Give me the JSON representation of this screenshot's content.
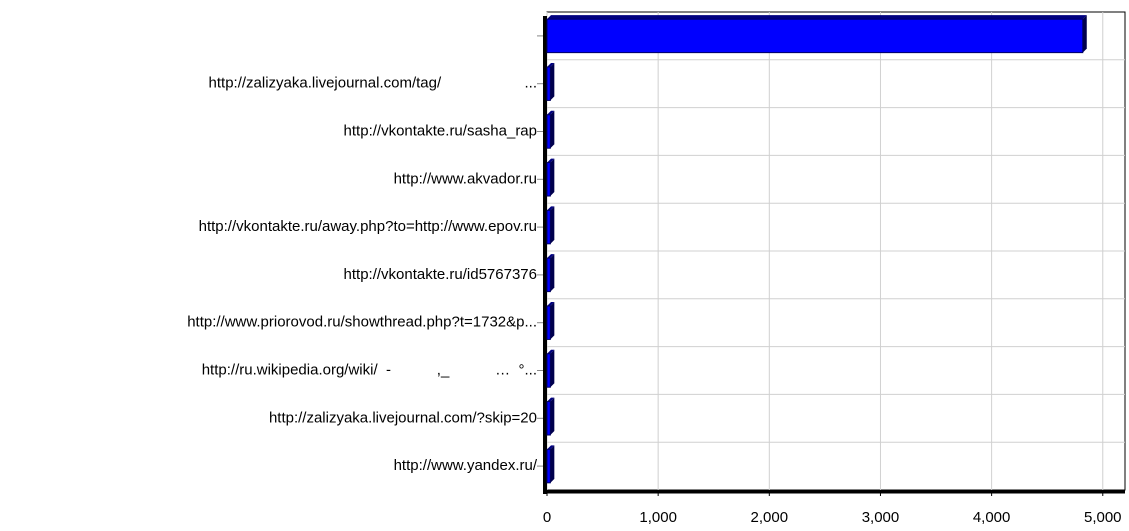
{
  "chart_data": {
    "type": "bar",
    "orientation": "horizontal",
    "categories": [
      null,
      "http://zalizyaka.livejournal.com/tag/                    ...",
      "http://vkontakte.ru/sasha_rap",
      "http://www.akvador.ru",
      "http://vkontakte.ru/away.php?to=http://www.epov.ru",
      "http://vkontakte.ru/id5767376",
      "http://www.priorovod.ru/showthread.php?t=1732&p...",
      "http://ru.wikipedia.org/wiki/  -           ,_           …  °...",
      "http://zalizyaka.livejournal.com/?skip=20",
      "http://www.yandex.ru/"
    ],
    "values": [
      4820,
      30,
      30,
      30,
      30,
      30,
      30,
      30,
      30,
      30
    ],
    "color": "#0000ff",
    "xlim": [
      0,
      5200
    ],
    "xticks": [
      0,
      {
        "value": 1000,
        "label": "1,000"
      },
      {
        "value": 2000,
        "label": "2,000"
      },
      {
        "value": 3000,
        "label": "3,000"
      },
      {
        "value": 4000,
        "label": "4,000"
      },
      {
        "value": 5000,
        "label": "5,000"
      }
    ],
    "grid": true
  }
}
